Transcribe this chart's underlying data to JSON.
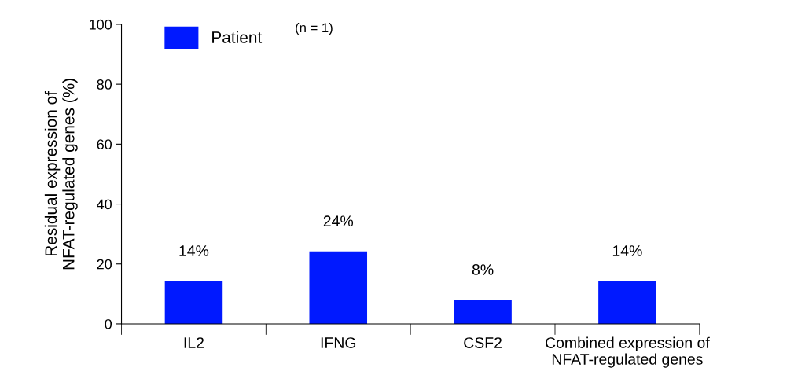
{
  "chart_data": {
    "type": "bar",
    "categories": [
      "IL2",
      "IFNG",
      "CSF2",
      "Combined expression of\nNFAT-regulated genes"
    ],
    "series": [
      {
        "name": "Patient",
        "color": "#0019ff",
        "values": [
          14.3,
          24.2,
          8.0,
          14.3
        ],
        "value_labels": [
          "14%",
          "24%",
          "8%",
          "14%"
        ]
      }
    ],
    "ylabel": "Residual expression of\nNFAT-regulated genes (%)",
    "ylim": [
      0,
      100
    ],
    "yticks": [
      0,
      20,
      40,
      60,
      80,
      100
    ],
    "annotations": [
      "(n = 1)"
    ],
    "legend": "top left",
    "grid": false
  }
}
